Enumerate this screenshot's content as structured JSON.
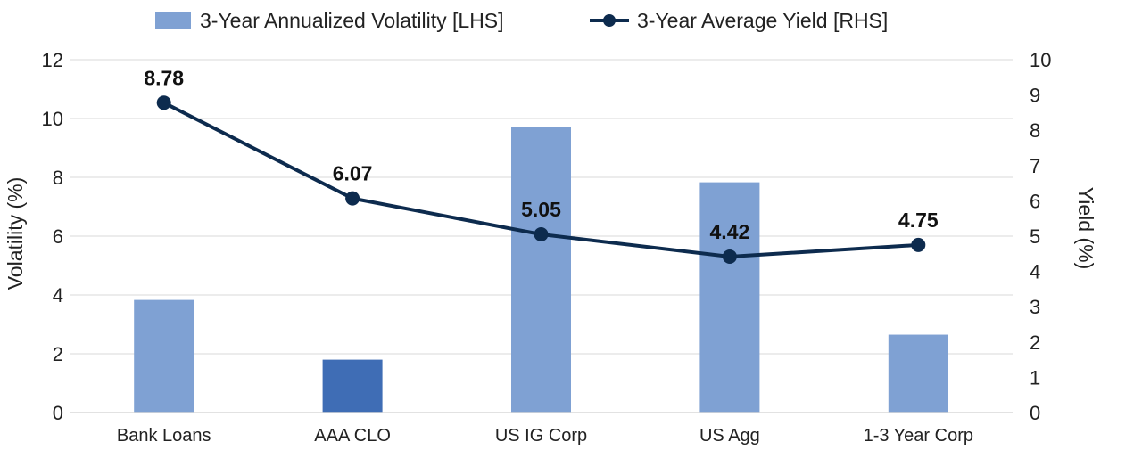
{
  "chart_data": {
    "type": "bar",
    "title": "",
    "categories": [
      "Bank Loans",
      "AAA CLO",
      "US IG Corp",
      "US Agg",
      "1-3 Year Corp"
    ],
    "series": [
      {
        "name": "3-Year Annualized Volatility [LHS]",
        "type": "bar",
        "axis": "left",
        "values": [
          3.83,
          1.8,
          9.7,
          7.83,
          2.65
        ],
        "color": "#7fa1d3",
        "highlight_index": 1,
        "highlight_color": "#3f6db5"
      },
      {
        "name": "3-Year Average Yield [RHS]",
        "type": "line",
        "axis": "right",
        "values": [
          8.78,
          6.07,
          5.05,
          4.42,
          4.75
        ],
        "data_labels": [
          "8.78",
          "6.07",
          "5.05",
          "4.42",
          "4.75"
        ],
        "color": "#0d2b4e"
      }
    ],
    "y_left": {
      "label": "Volatility (%)",
      "lim": [
        0,
        12
      ],
      "ticks": [
        "0",
        "2",
        "4",
        "6",
        "8",
        "10",
        "12"
      ]
    },
    "y_right": {
      "label": "Yield (%)",
      "lim": [
        0,
        10
      ],
      "ticks": [
        "0",
        "1",
        "2",
        "3",
        "4",
        "5",
        "6",
        "7",
        "8",
        "9",
        "10"
      ]
    },
    "grid": true,
    "legend_position": "top-center"
  }
}
